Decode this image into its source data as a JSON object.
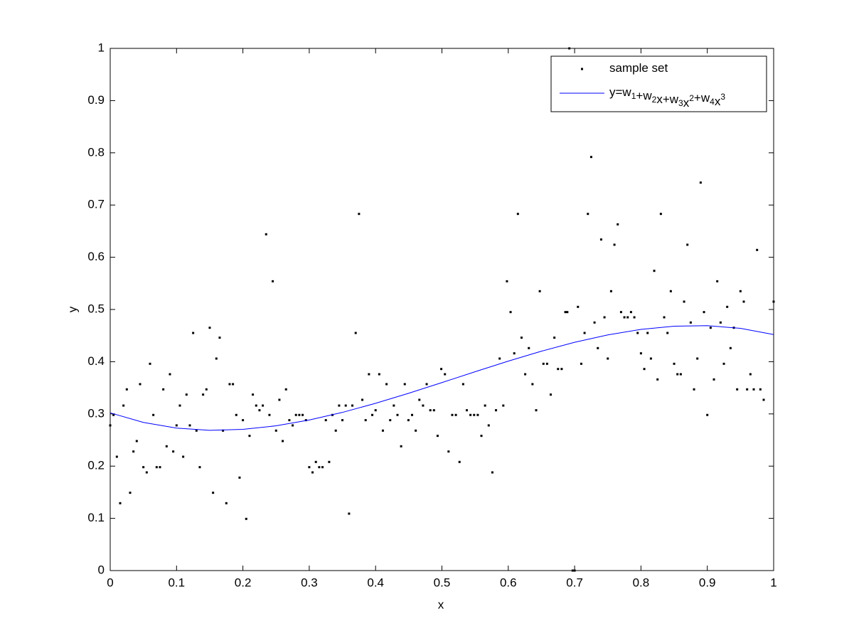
{
  "chart_data": {
    "type": "scatter",
    "xlabel": "x",
    "ylabel": "y",
    "xlim": [
      0,
      1
    ],
    "ylim": [
      0,
      1
    ],
    "xticks": [
      0,
      0.1,
      0.2,
      0.3,
      0.4,
      0.5,
      0.6,
      0.7,
      0.8,
      0.9,
      1
    ],
    "yticks": [
      0,
      0.1,
      0.2,
      0.3,
      0.4,
      0.5,
      0.6,
      0.7,
      0.8,
      0.9,
      1
    ],
    "grid": false,
    "legend": "northeast",
    "series": [
      {
        "name": "sample set",
        "type": "scatter",
        "color": "#000000",
        "x": [
          0,
          0.005,
          0.01,
          0.015,
          0.02,
          0.025,
          0.03,
          0.035,
          0.04,
          0.045,
          0.05,
          0.055,
          0.06,
          0.065,
          0.07,
          0.075,
          0.08,
          0.085,
          0.09,
          0.095,
          0.1,
          0.105,
          0.11,
          0.115,
          0.12,
          0.125,
          0.13,
          0.135,
          0.14,
          0.145,
          0.15,
          0.155,
          0.16,
          0.165,
          0.17,
          0.175,
          0.18,
          0.185,
          0.19,
          0.195,
          0.2,
          0.205,
          0.21,
          0.215,
          0.22,
          0.225,
          0.23,
          0.235,
          0.24,
          0.245,
          0.25,
          0.255,
          0.26,
          0.265,
          0.27,
          0.275,
          0.28,
          0.285,
          0.29,
          0.295,
          0.3,
          0.305,
          0.31,
          0.315,
          0.32,
          0.325,
          0.33,
          0.335,
          0.34,
          0.345,
          0.35,
          0.355,
          0.36,
          0.365,
          0.37,
          0.375,
          0.38,
          0.385,
          0.39,
          0.395,
          0.4,
          0.4055,
          0.411,
          0.4165,
          0.422,
          0.4275,
          0.433,
          0.4385,
          0.444,
          0.4495,
          0.455,
          0.4605,
          0.466,
          0.4715,
          0.477,
          0.4825,
          0.488,
          0.4935,
          0.499,
          0.5045,
          0.51,
          0.5155,
          0.521,
          0.5265,
          0.532,
          0.5375,
          0.543,
          0.5485,
          0.554,
          0.5595,
          0.565,
          0.5705,
          0.576,
          0.5815,
          0.587,
          0.5925,
          0.598,
          0.6035,
          0.609,
          0.6145,
          0.62,
          0.6255,
          0.631,
          0.6365,
          0.642,
          0.6475,
          0.653,
          0.6585,
          0.664,
          0.6695,
          0.675,
          0.6805,
          0.686,
          0.689,
          0.692,
          0.697,
          0.7,
          0.705,
          0.71,
          0.715,
          0.72,
          0.725,
          0.73,
          0.735,
          0.74,
          0.745,
          0.75,
          0.755,
          0.76,
          0.765,
          0.77,
          0.775,
          0.78,
          0.785,
          0.79,
          0.795,
          0.8,
          0.805,
          0.81,
          0.815,
          0.82,
          0.825,
          0.83,
          0.835,
          0.84,
          0.845,
          0.85,
          0.855,
          0.86,
          0.865,
          0.87,
          0.875,
          0.88,
          0.885,
          0.89,
          0.895,
          0.9,
          0.905,
          0.91,
          0.915,
          0.92,
          0.925,
          0.93,
          0.935,
          0.94,
          0.945,
          0.95,
          0.955,
          0.96,
          0.965,
          0.97,
          0.975,
          0.98,
          0.985,
          1
        ],
        "values": [
          0.278,
          0.298,
          0.218,
          0.129,
          0.316,
          0.347,
          0.149,
          0.228,
          0.248,
          0.357,
          0.198,
          0.188,
          0.396,
          0.298,
          0.198,
          0.198,
          0.347,
          0.238,
          0.376,
          0.228,
          0.278,
          0.316,
          0.218,
          0.337,
          0.278,
          0.455,
          0.268,
          0.198,
          0.337,
          0.347,
          0.465,
          0.149,
          0.406,
          0.446,
          0.268,
          0.129,
          0.357,
          0.357,
          0.298,
          0.178,
          0.288,
          0.099,
          0.258,
          0.337,
          0.316,
          0.307,
          0.316,
          0.644,
          0.298,
          0.554,
          0.268,
          0.327,
          0.248,
          0.347,
          0.288,
          0.278,
          0.298,
          0.298,
          0.298,
          0.288,
          0.198,
          0.188,
          0.208,
          0.198,
          0.198,
          0.288,
          0.208,
          0.298,
          0.268,
          0.316,
          0.288,
          0.316,
          0.109,
          0.316,
          0.455,
          0.683,
          0.327,
          0.288,
          0.376,
          0.298,
          0.307,
          0.376,
          0.268,
          0.357,
          0.288,
          0.316,
          0.298,
          0.238,
          0.357,
          0.288,
          0.298,
          0.268,
          0.327,
          0.316,
          0.357,
          0.307,
          0.307,
          0.258,
          0.386,
          0.376,
          0.228,
          0.298,
          0.298,
          0.208,
          0.357,
          0.307,
          0.298,
          0.298,
          0.298,
          0.258,
          0.316,
          0.278,
          0.188,
          0.307,
          0.406,
          0.316,
          0.554,
          0.495,
          0.416,
          0.683,
          0.446,
          0.376,
          0.426,
          0.357,
          0.307,
          0.535,
          0.396,
          0.396,
          0.337,
          0.446,
          0.386,
          0.386,
          0.495,
          0.495,
          1,
          0,
          0,
          0.505,
          0.396,
          0.455,
          0.683,
          0.792,
          0.475,
          0.426,
          0.634,
          0.485,
          0.406,
          0.535,
          0.624,
          0.663,
          0.495,
          0.485,
          0.485,
          0.495,
          0.485,
          0.455,
          0.416,
          0.386,
          0.455,
          0.406,
          0.574,
          0.366,
          0.683,
          0.485,
          0.455,
          0.535,
          0.396,
          0.376,
          0.376,
          0.515,
          0.624,
          0.475,
          0.347,
          0.406,
          0.743,
          0.495,
          0.298,
          0.465,
          0.366,
          0.554,
          0.475,
          0.396,
          0.505,
          0.426,
          0.465,
          0.347,
          0.535,
          0.515,
          0.347,
          0.376,
          0.347,
          0.614,
          0.347,
          0.327,
          0.515
        ]
      },
      {
        "name": "y=w_1+w_2x+w_3x^2+w_4x^3",
        "type": "line",
        "color": "#0000ff",
        "x": [
          0,
          0.05,
          0.1,
          0.15,
          0.2,
          0.25,
          0.3,
          0.35,
          0.4,
          0.45,
          0.5,
          0.55,
          0.6,
          0.65,
          0.7,
          0.75,
          0.8,
          0.85,
          0.9,
          0.95,
          1
        ],
        "values": [
          0.302,
          0.2837,
          0.2728,
          0.2686,
          0.2704,
          0.2772,
          0.2883,
          0.3029,
          0.3203,
          0.3396,
          0.36,
          0.3808,
          0.4011,
          0.4201,
          0.4372,
          0.4513,
          0.4619,
          0.468,
          0.469,
          0.4639,
          0.452
        ]
      }
    ]
  }
}
